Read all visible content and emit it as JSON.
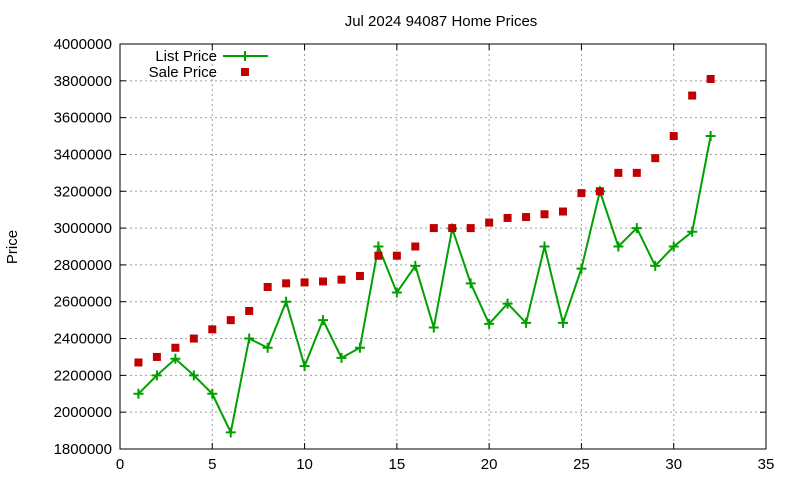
{
  "chart_data": {
    "type": "line",
    "title": "Jul 2024 94087 Home Prices",
    "xlabel": "",
    "ylabel": "Price",
    "xlim": [
      0,
      35
    ],
    "ylim": [
      1800000,
      4000000
    ],
    "xticks": [
      0,
      5,
      10,
      15,
      20,
      25,
      30,
      35
    ],
    "yticks": [
      1800000,
      2000000,
      2200000,
      2400000,
      2600000,
      2800000,
      3000000,
      3200000,
      3400000,
      3600000,
      3800000,
      4000000
    ],
    "grid": true,
    "legend_position": "top-left",
    "x": [
      1,
      2,
      3,
      4,
      5,
      6,
      7,
      8,
      9,
      10,
      11,
      12,
      13,
      14,
      15,
      16,
      17,
      18,
      19,
      20,
      21,
      22,
      23,
      24,
      25,
      26,
      27,
      28,
      29,
      30,
      31,
      32
    ],
    "series": [
      {
        "name": "List Price",
        "style": "line-plus",
        "color": "#00a000",
        "values": [
          2100000,
          2200000,
          2290000,
          2200000,
          2100000,
          1890000,
          2400000,
          2350000,
          2600000,
          2250000,
          2500000,
          2295000,
          2350000,
          2900000,
          2650000,
          2795000,
          2460000,
          2998000,
          2700000,
          2480000,
          2590000,
          2485000,
          2900000,
          2485000,
          2780000,
          3200000,
          2900000,
          3000000,
          2795000,
          2900000,
          2980000,
          3500000
        ]
      },
      {
        "name": "Sale Price",
        "style": "square-points",
        "color": "#c00000",
        "values": [
          2270000,
          2300000,
          2350000,
          2400000,
          2450000,
          2500000,
          2550000,
          2680000,
          2700000,
          2705000,
          2710000,
          2720000,
          2740000,
          2850000,
          2850000,
          2900000,
          3000000,
          3000000,
          3000000,
          3030000,
          3055000,
          3060000,
          3075000,
          3090000,
          3190000,
          3200000,
          3300000,
          3300000,
          3380000,
          3500000,
          3720000,
          3810000
        ]
      }
    ]
  }
}
